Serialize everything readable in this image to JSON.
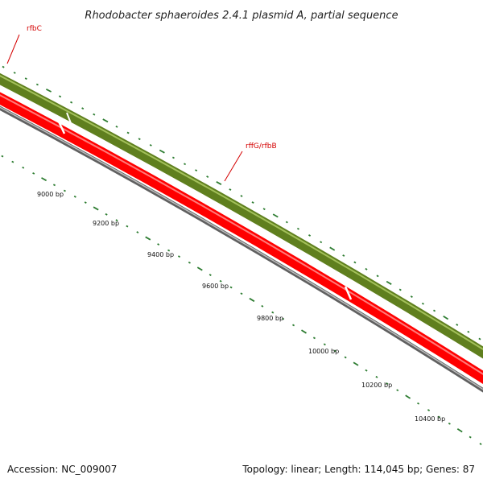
{
  "title": "Rhodobacter sphaeroides 2.4.1 plasmid A, partial sequence",
  "genes": [
    {
      "label": "rfbC",
      "strand": "forward",
      "color": "#6b8e23"
    },
    {
      "label": "rffG/rfbB",
      "strand": "forward",
      "color": "#6b8e23"
    }
  ],
  "ruler_labels": [
    "9000 bp",
    "9200 bp",
    "9400 bp",
    "9600 bp",
    "9800 bp",
    "10000 bp",
    "10200 bp",
    "10400 bp"
  ],
  "colors": {
    "forward_track": "#6b8e23",
    "reverse_track": "#ff0000",
    "backbone": "#808080",
    "tick": "#2e7d32",
    "gene_label": "#d40000"
  },
  "footer": {
    "accession": "Accession: NC_009007",
    "topology": "Topology: linear; Length: 114,045 bp; Genes: 87"
  }
}
